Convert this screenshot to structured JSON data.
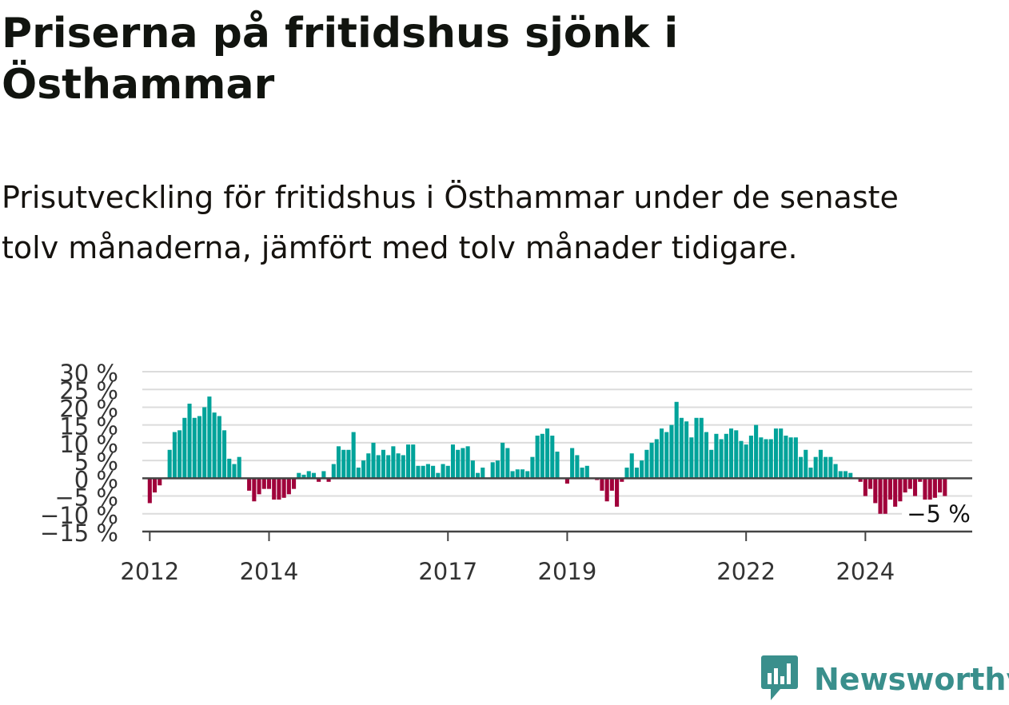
{
  "title": "Priserna på fritidshus sjönk i Östhammar",
  "subtitle": "Prisutveckling för fritidshus i Östhammar under de senaste tolv månaderna, jämfört med tolv månader tidigare.",
  "brand": {
    "name": "Newsworthy",
    "icon": "newsworthy-logo-icon",
    "color": "#3a8f8c"
  },
  "colors": {
    "positive": "#00a39a",
    "negative": "#a0003a",
    "gridline": "#dcdcdc",
    "zero_line": "#444444"
  },
  "chart_data": {
    "type": "bar",
    "x_start": "2011-12",
    "x_end": "2024-12",
    "x_unit": "month",
    "ylim": [
      -15,
      30
    ],
    "y_ticks": [
      30,
      25,
      20,
      15,
      10,
      5,
      0,
      -5,
      -10,
      -15
    ],
    "y_tick_labels": [
      "30 %",
      "25 %",
      "20 %",
      "15 %",
      "10 %",
      "5 %",
      "0 %",
      "−5 %",
      "−10 %",
      "−15 %"
    ],
    "x_tick_labels": [
      "2012",
      "2014",
      "2017",
      "2019",
      "2022",
      "2024"
    ],
    "x_ticks": [
      "2012-01",
      "2014-01",
      "2017-01",
      "2019-01",
      "2022-01",
      "2024-01"
    ],
    "grid": true,
    "last_value_label": "−5 %",
    "values": [
      null,
      -7,
      -4,
      -2,
      0,
      8,
      13,
      13.5,
      17,
      21,
      17,
      17.5,
      20,
      23,
      18.5,
      17.5,
      13.5,
      5.5,
      4,
      6,
      0,
      -3.5,
      -6.5,
      -4.5,
      -3,
      -3,
      -6,
      -6,
      -5.5,
      -4.5,
      -3,
      1.5,
      1,
      2,
      1.5,
      -1,
      2,
      -1,
      4,
      9,
      8,
      8,
      13,
      3,
      5,
      7,
      10,
      6.5,
      8,
      6.5,
      9,
      7,
      6.5,
      9.5,
      9.5,
      3.5,
      3.5,
      4,
      3.5,
      1.5,
      4,
      3.5,
      9.5,
      8,
      8.5,
      9,
      5,
      1.5,
      3,
      0,
      4.5,
      5,
      10,
      8.5,
      2,
      2.5,
      2.5,
      2,
      6,
      12,
      12.5,
      14,
      12,
      7.5,
      0,
      -1.5,
      8.5,
      6.5,
      3,
      3.5,
      0,
      -0.5,
      -3.5,
      -6.5,
      -3.5,
      -8,
      -1,
      3,
      7,
      3,
      5,
      8,
      10,
      11,
      14,
      13,
      15,
      21.5,
      17,
      16,
      11.5,
      17,
      17,
      13,
      8,
      12.5,
      11,
      12.5,
      14,
      13.5,
      10.5,
      9.5,
      12,
      15,
      11.5,
      11,
      11,
      14,
      14,
      12,
      11.5,
      11.5,
      6,
      8,
      3,
      6,
      8,
      6,
      6,
      4,
      2,
      2,
      1.5,
      0,
      -1,
      -5,
      -3,
      -7,
      -10,
      -10,
      -6,
      -8,
      -6.5,
      -4,
      -3,
      -5,
      -1,
      -7,
      -7,
      -5.5,
      -4,
      -5,
      null,
      null,
      null,
      null,
      null
    ]
  }
}
